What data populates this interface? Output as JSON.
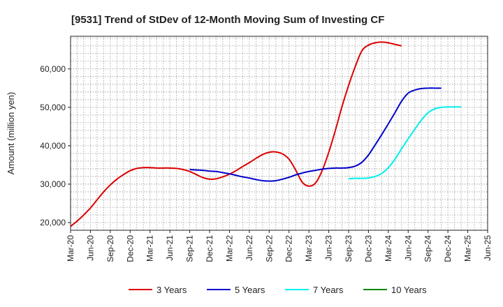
{
  "chart_data": {
    "type": "line",
    "title": "[9531]  Trend of StDev of 12-Month Moving Sum of Investing CF",
    "ylabel": "Amount (million yen)",
    "xlabel": "",
    "ylim": [
      18000,
      68500
    ],
    "yticks": [
      20000,
      30000,
      40000,
      50000,
      60000
    ],
    "ytick_labels": [
      "20,000",
      "30,000",
      "40,000",
      "50,000",
      "60,000"
    ],
    "x_tick_labels": [
      "Mar-20",
      "Jun-20",
      "Sep-20",
      "Dec-20",
      "Mar-21",
      "Jun-21",
      "Sep-21",
      "Dec-21",
      "Mar-22",
      "Jun-22",
      "Sep-22",
      "Dec-22",
      "Mar-23",
      "Jun-23",
      "Sep-23",
      "Dec-23",
      "Mar-24",
      "Jun-24",
      "Sep-24",
      "Dec-24",
      "Mar-25",
      "Jun-25"
    ],
    "grid": true,
    "legend_position": "bottom",
    "series": [
      {
        "name": "3 Years",
        "color": "#dd0000",
        "start_index": 0,
        "values": [
          19000,
          20400,
          22000,
          23800,
          25900,
          28000,
          29800,
          31300,
          32500,
          33500,
          34100,
          34300,
          34300,
          34200,
          34200,
          34200,
          34100,
          33800,
          33300,
          32500,
          31700,
          31300,
          31400,
          31900,
          32600,
          33500,
          34600,
          35600,
          36700,
          37700,
          38300,
          38400,
          37900,
          36500,
          33700,
          30500,
          29500,
          30300,
          33500,
          38300,
          44000,
          50200,
          55700,
          60600,
          64700,
          66200,
          66800,
          67000,
          66800,
          66400,
          66000
        ]
      },
      {
        "name": "5 Years",
        "color": "#0000cc",
        "start_index": 18,
        "values": [
          33800,
          33700,
          33600,
          33400,
          33300,
          33000,
          32700,
          32300,
          31900,
          31600,
          31200,
          30900,
          30800,
          30900,
          31300,
          31800,
          32400,
          32900,
          33300,
          33600,
          33900,
          34100,
          34200,
          34200,
          34300,
          34700,
          35700,
          37600,
          40200,
          42900,
          45700,
          48600,
          51600,
          53700,
          54500,
          54900,
          55000,
          55000,
          55000
        ]
      },
      {
        "name": "7 Years",
        "color": "#00eeee",
        "start_index": 42,
        "values": [
          31400,
          31500,
          31500,
          31600,
          32000,
          32800,
          34300,
          36500,
          39200,
          41800,
          44300,
          46700,
          48600,
          49600,
          50000,
          50100,
          50100,
          50100
        ]
      },
      {
        "name": "10 Years",
        "color": "#008800",
        "start_index": 0,
        "values": []
      }
    ]
  }
}
